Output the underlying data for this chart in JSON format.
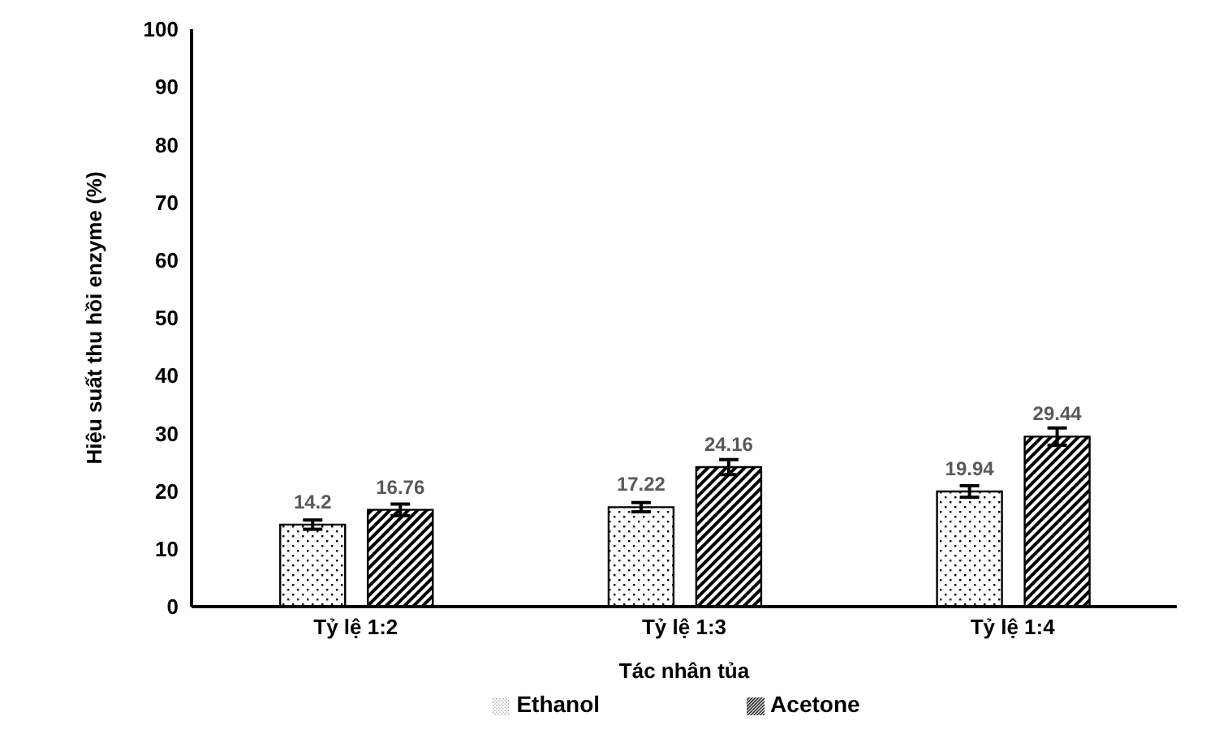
{
  "chart_data": {
    "type": "bar",
    "xlabel": "Tác nhân tủa",
    "ylabel": "Hiệu suất thu hồi enzyme  (%)",
    "categories": [
      "Tỷ lệ 1:2",
      "Tỷ lệ 1:3",
      "Tỷ lệ 1:4"
    ],
    "series": [
      {
        "name": "Ethanol",
        "color": "#000000",
        "values": [
          14.2,
          17.22,
          19.94
        ],
        "errors": [
          0.8,
          0.8,
          1.0
        ]
      },
      {
        "name": "Acetone",
        "color": "#000000",
        "values": [
          16.76,
          24.16,
          29.44
        ],
        "errors": [
          1.0,
          1.3,
          1.5
        ]
      }
    ],
    "ylim": [
      0,
      100
    ],
    "yticks": [
      0,
      10,
      20,
      30,
      40,
      50,
      60,
      70,
      80,
      90,
      100
    ],
    "grid": false,
    "legend": "bottom",
    "data_labels": true
  }
}
